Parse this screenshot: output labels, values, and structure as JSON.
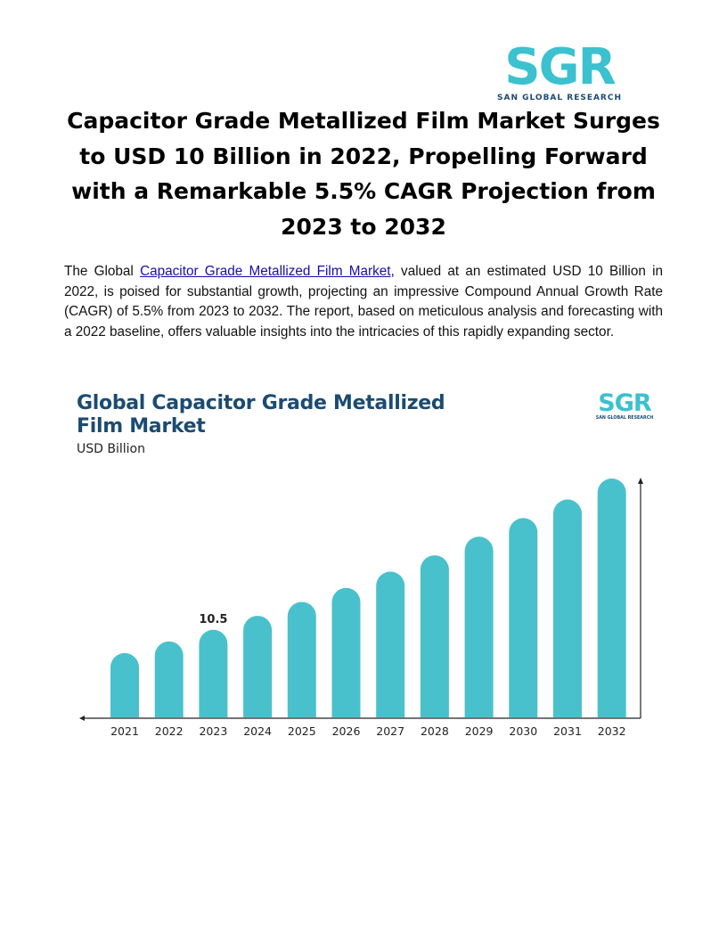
{
  "brand": {
    "logo_text": "SGR",
    "logo_subtitle": "SAN GLOBAL RESEARCH",
    "colors": {
      "cyan": "#3bc1cf",
      "navy": "#1b4b73",
      "bar": "#49c1cc"
    }
  },
  "article": {
    "headline": "Capacitor Grade Metallized Film Market Surges to USD 10 Billion in 2022, Propelling Forward with a Remarkable 5.5% CAGR Projection from 2023 to 2032",
    "intro_before_link": "The Global ",
    "intro_link": "Capacitor Grade Metallized Film Market",
    "intro_after_link": ", valued at an estimated USD 10 Billion in 2022, is poised for substantial growth, projecting an impressive Compound Annual Growth Rate (CAGR) of 5.5% from 2023 to 2032. The report, based on meticulous analysis and forecasting with a 2022 baseline, offers valuable insights into the intricacies of this rapidly expanding sector."
  },
  "chart_data": {
    "type": "bar",
    "title": "Global Capacitor Grade Metallized Film Market",
    "subtitle": "USD Billion",
    "categories": [
      "2021",
      "2022",
      "2023",
      "2024",
      "2025",
      "2026",
      "2027",
      "2028",
      "2029",
      "2030",
      "2031",
      "2032"
    ],
    "values": [
      9.5,
      10.0,
      10.5,
      11.1,
      11.7,
      12.3,
      13.0,
      13.7,
      14.5,
      15.3,
      16.1,
      17.0
    ],
    "data_labels": [
      {
        "category": "2023",
        "text": "10.5"
      }
    ],
    "grid": false,
    "legend": "none"
  }
}
